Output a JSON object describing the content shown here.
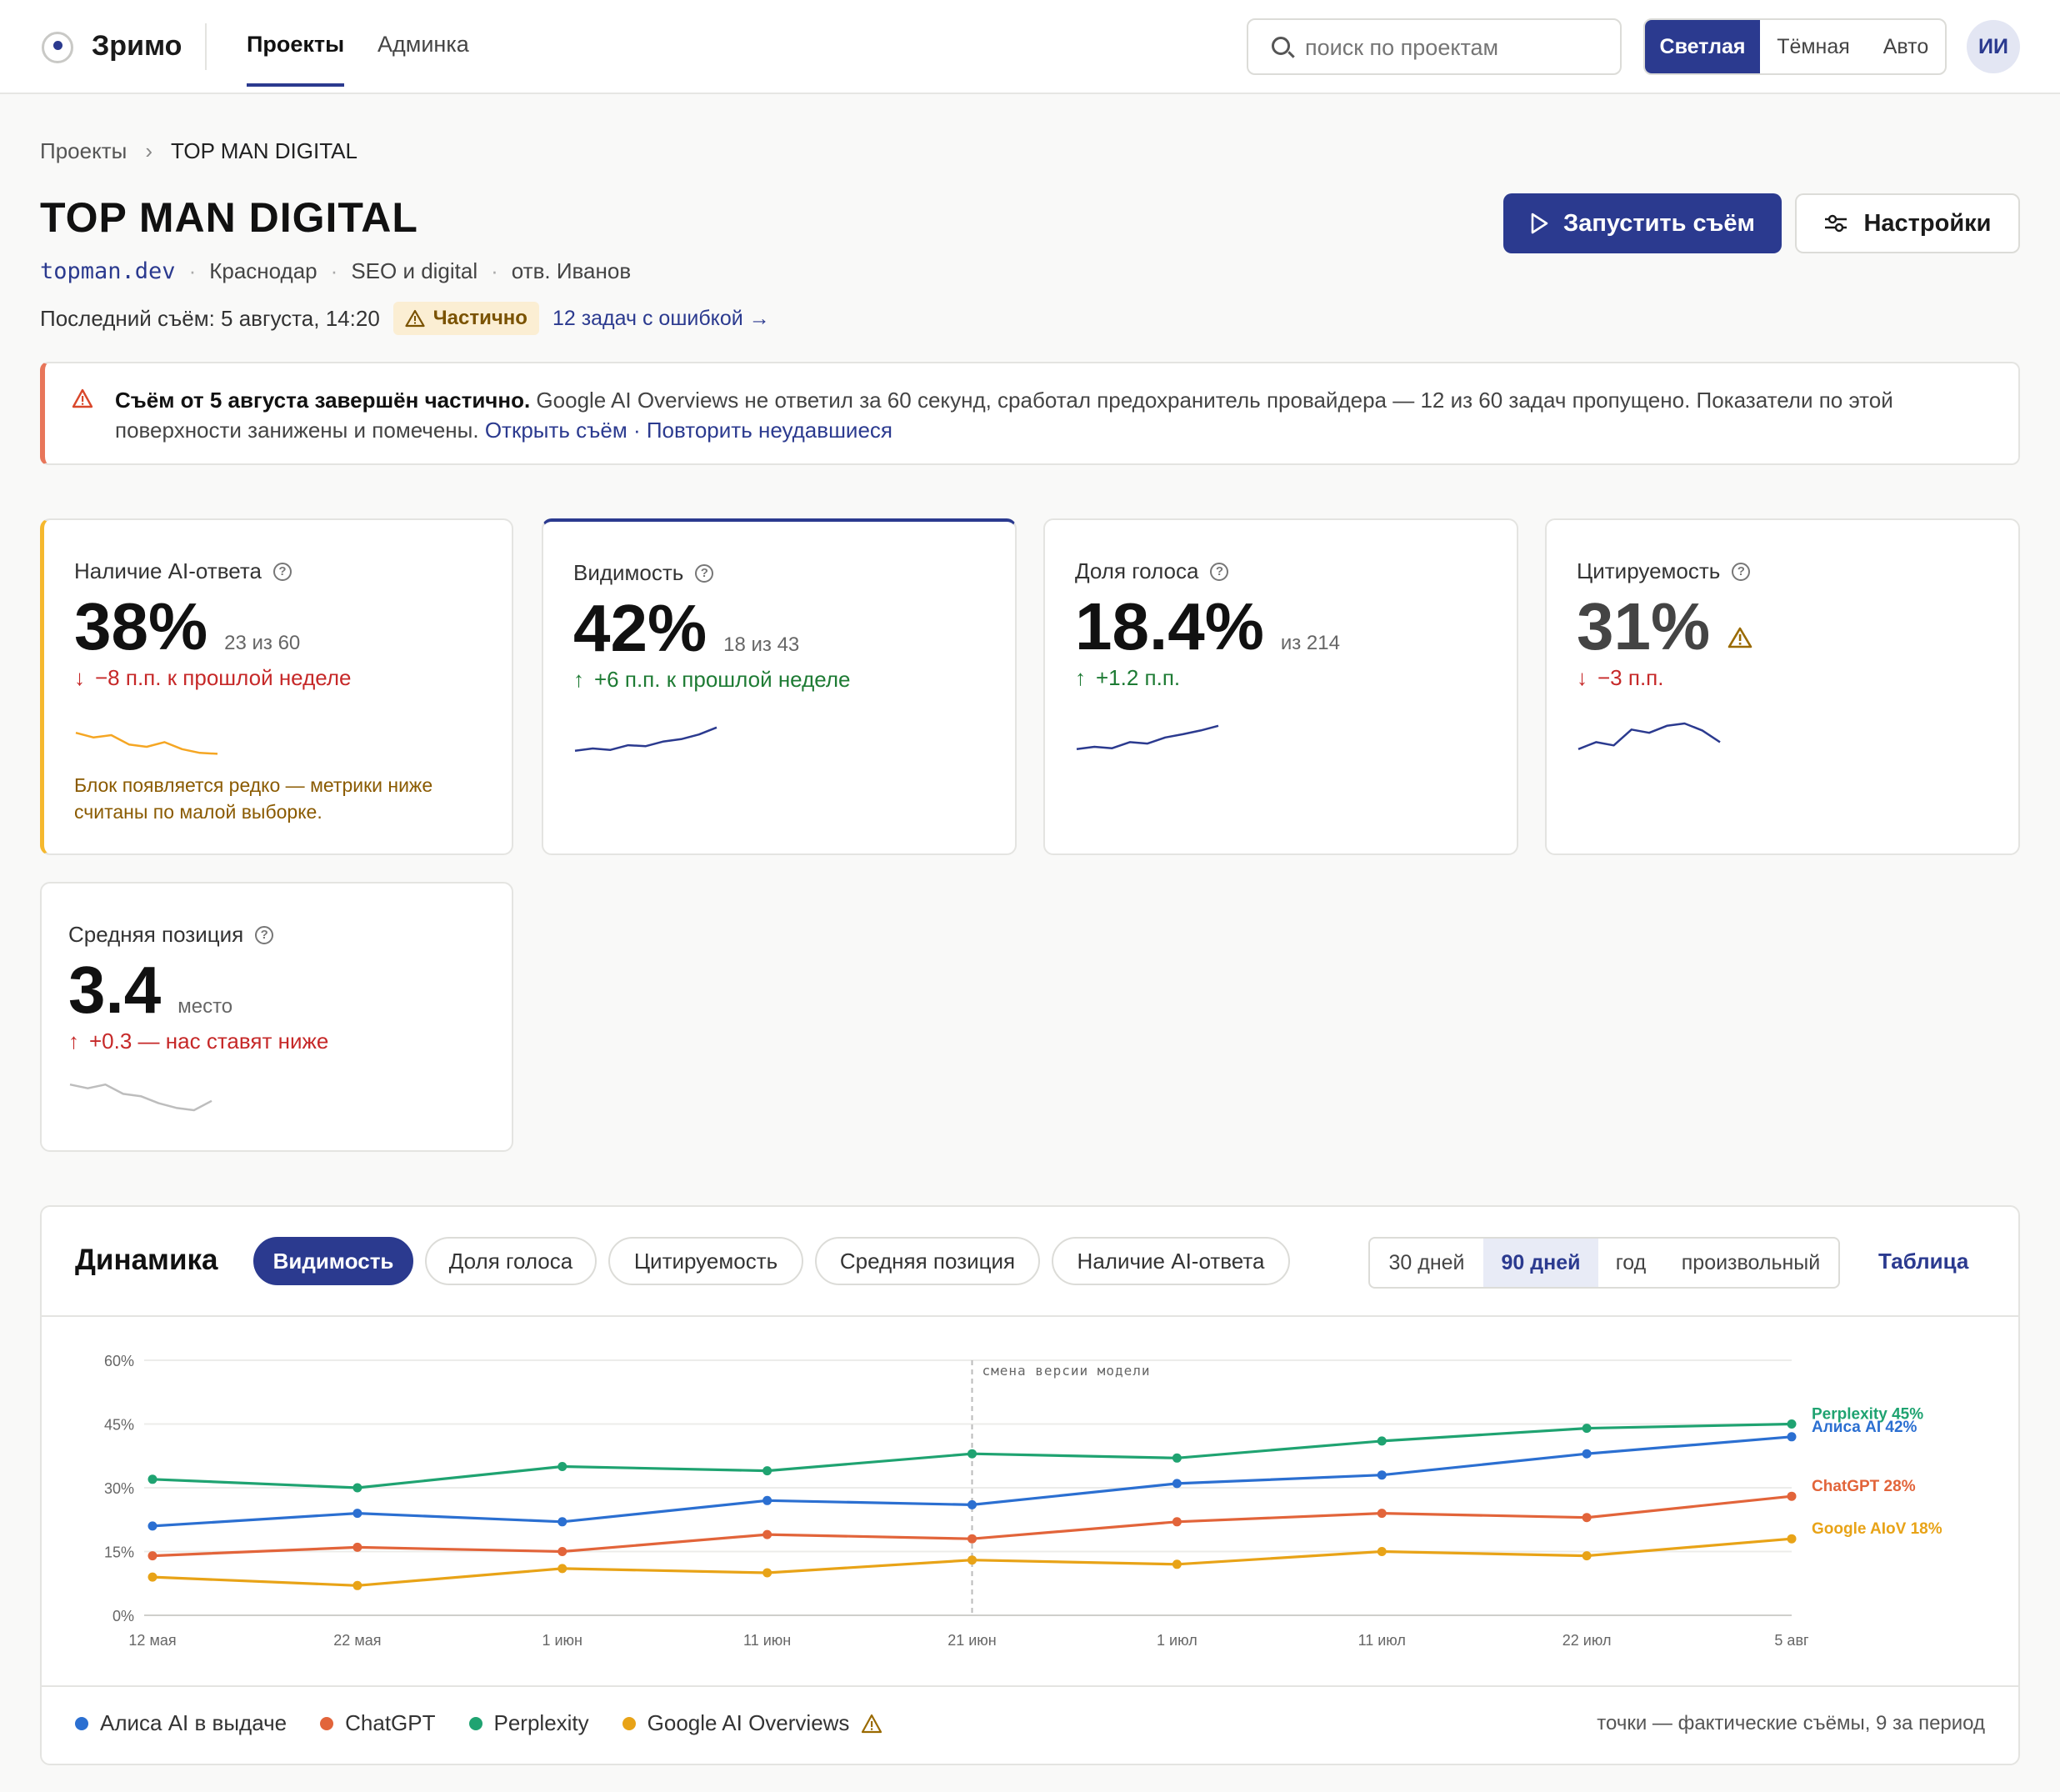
{
  "nav": {
    "brand": "Зримо",
    "tabs": [
      "Проекты",
      "Админка"
    ],
    "search_placeholder": "поиск по проектам",
    "theme_options": [
      "Светлая",
      "Тёмная",
      "Авто"
    ],
    "theme_selected": "Светлая",
    "avatar": "ИИ"
  },
  "breadcrumb": [
    "Проекты",
    "TOP MAN DIGITAL"
  ],
  "project": {
    "title": "TOP MAN DIGITAL",
    "domain": "topman.dev",
    "city": "Краснодар",
    "category": "SEO и digital",
    "owner": "отв. Иванов",
    "last_run": "Последний съём: 5 августа, 14:20",
    "status_badge": "Частично",
    "error_link": "12 задач с ошибкой →"
  },
  "actions": {
    "run": "Запустить съём",
    "settings": "Настройки"
  },
  "alert": {
    "bold": "Съём от 5 августа завершён частично.",
    "text": " Google AI Overviews не ответил за 60 секунд, сработал предохранитель провайдера — 12 из 60 задач пропущено. Показатели по этой поверхности занижены и помечены. ",
    "link_open": "Открыть съём",
    "sep": " · ",
    "link_retry": "Повторить неудавшиеся"
  },
  "metrics": [
    {
      "label": "Наличие AI-ответа",
      "value": "38%",
      "sub": "23 из 60",
      "delta": "−8 п.п. к прошлой неделе",
      "dir": "down",
      "note": "Блок появляется редко — метрики ниже считаны по малой выборке.",
      "spark": [
        0.55,
        0.45,
        0.5,
        0.3,
        0.25,
        0.35,
        0.2,
        0.12,
        0.1
      ],
      "spark_color": "#f5a623"
    },
    {
      "label": "Видимость",
      "value": "42%",
      "sub": "18 из 43",
      "delta": "+6 п.п. к прошлой неделе",
      "dir": "up",
      "spark": [
        0.2,
        0.25,
        0.22,
        0.32,
        0.3,
        0.4,
        0.45,
        0.55,
        0.7
      ],
      "spark_color": "#2b3a8f"
    },
    {
      "label": "Доля голоса",
      "value": "18.4%",
      "sub": "из 214",
      "delta": "+1.2 п.п.",
      "dir": "up",
      "spark": [
        0.2,
        0.25,
        0.22,
        0.35,
        0.32,
        0.45,
        0.52,
        0.6,
        0.7
      ],
      "spark_color": "#2b3a8f"
    },
    {
      "label": "Цитируемость",
      "value": "31%",
      "sub": "",
      "delta": "−3 п.п.",
      "dir": "down",
      "warn": true,
      "spark": [
        0.2,
        0.35,
        0.28,
        0.62,
        0.55,
        0.7,
        0.75,
        0.6,
        0.35
      ],
      "spark_color": "#2b3a8f"
    },
    {
      "label": "Средняя позиция",
      "value": "3.4",
      "sub": "место",
      "delta": "+0.3 — нас ставят ниже",
      "dir": "upbad",
      "spark": [
        0.8,
        0.72,
        0.8,
        0.6,
        0.55,
        0.4,
        0.3,
        0.25,
        0.45
      ],
      "spark_color": "#bdbdbd"
    }
  ],
  "dynamics": {
    "title": "Динамика",
    "metric_tabs": [
      "Видимость",
      "Доля голоса",
      "Цитируемость",
      "Средняя позиция",
      "Наличие AI-ответа"
    ],
    "metric_selected": "Видимость",
    "ranges": [
      "30 дней",
      "90 дней",
      "год",
      "произвольный"
    ],
    "range_selected": "90 дней",
    "table_link": "Таблица",
    "note": "точки — фактические съёмы, 9 за период"
  },
  "chart_data": {
    "type": "line",
    "x": [
      "12 мая",
      "22 мая",
      "1 июн",
      "11 июн",
      "21 июн",
      "1 июл",
      "11 июл",
      "22 июл",
      "5 авг"
    ],
    "y_ticks": [
      "0%",
      "15%",
      "30%",
      "45%",
      "60%"
    ],
    "ylim": [
      0,
      60
    ],
    "grid": true,
    "annotation": {
      "x": "21 июн",
      "label": "смена версии модели"
    },
    "series": [
      {
        "name": "Perplexity",
        "end_label": "Perplexity 45%",
        "color": "#1fa371",
        "values": [
          32,
          30,
          35,
          34,
          38,
          37,
          41,
          44,
          45
        ]
      },
      {
        "name": "Алиса AI",
        "end_label": "Алиса AI 42%",
        "color": "#2b6fd1",
        "values": [
          21,
          24,
          22,
          27,
          26,
          31,
          33,
          38,
          42
        ]
      },
      {
        "name": "ChatGPT",
        "end_label": "ChatGPT 28%",
        "color": "#e2643a",
        "values": [
          14,
          16,
          15,
          19,
          18,
          22,
          24,
          23,
          28
        ]
      },
      {
        "name": "Google AI Overviews",
        "end_label": "Google AIoV 18%",
        "color": "#e8a317",
        "values": [
          9,
          7,
          11,
          10,
          13,
          12,
          15,
          14,
          18
        ]
      }
    ],
    "legend": [
      "Алиса AI в выдаче",
      "ChatGPT",
      "Perplexity",
      "Google AI Overviews"
    ],
    "legend_colors": [
      "#2b6fd1",
      "#e2643a",
      "#1fa371",
      "#e8a317"
    ],
    "legend_placement": "bottom"
  }
}
